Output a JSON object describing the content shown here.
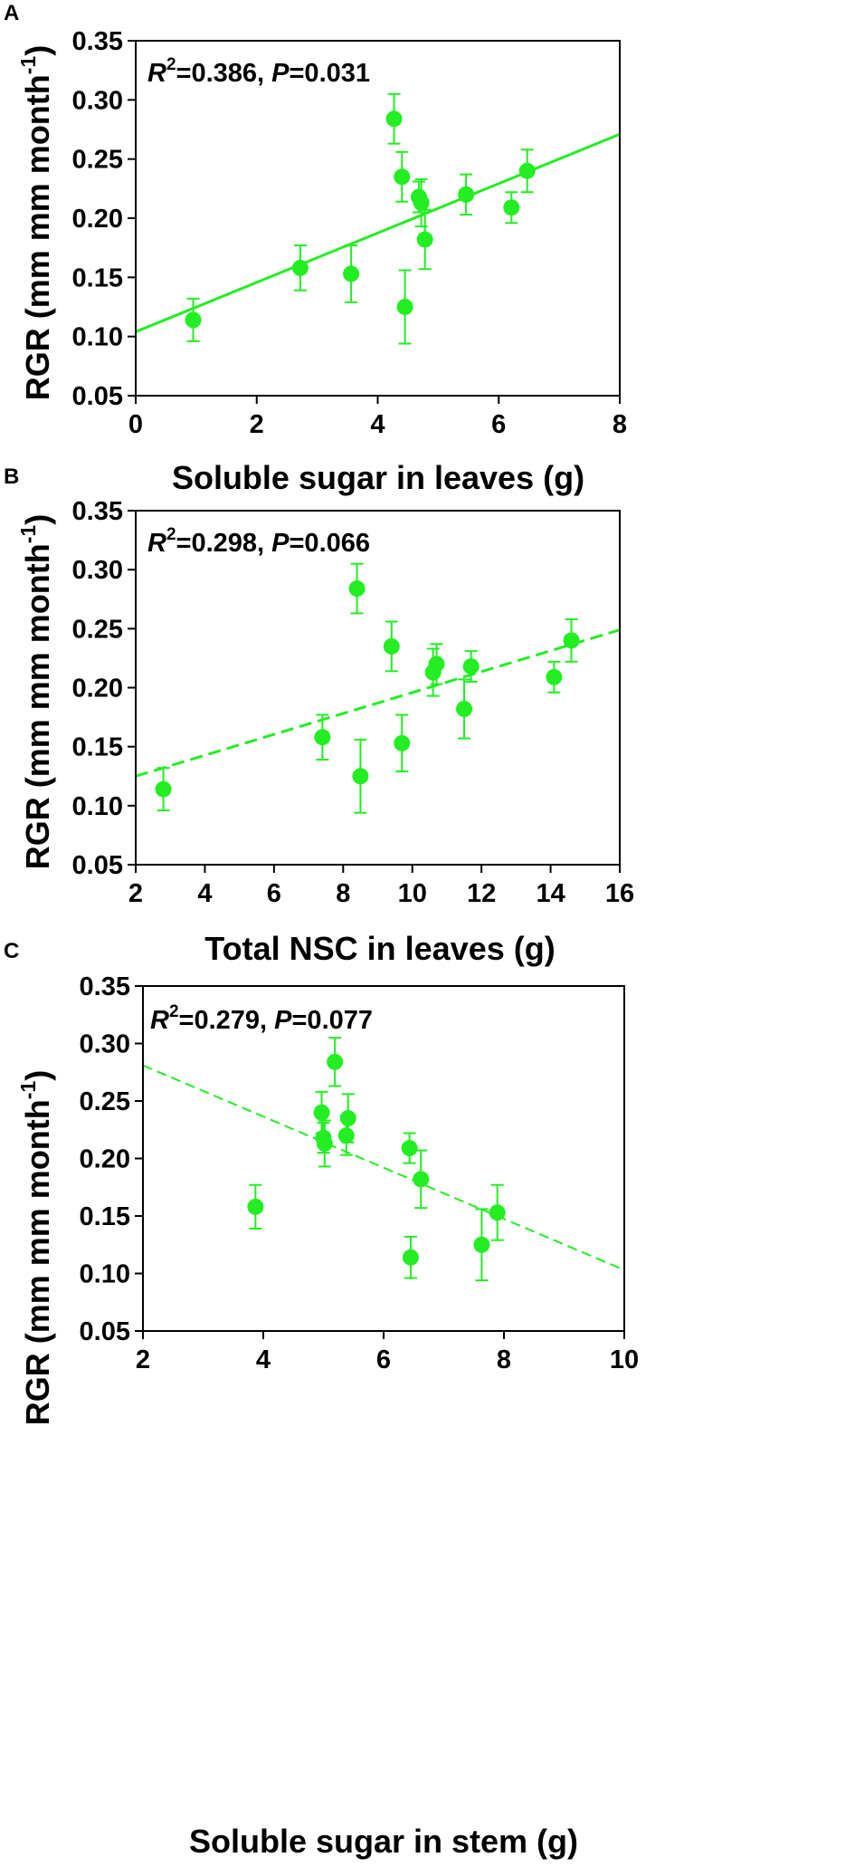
{
  "colors": {
    "series": "#22ee22",
    "axis": "#000000"
  },
  "chart_data": [
    {
      "type": "scatter",
      "panel": "A",
      "xlabel": "Soluble sugar in leaves (g)",
      "ylabel_main": "RGR (mm mm month",
      "ylabel_sup": "-1",
      "ylabel_close": ")",
      "xlim": [
        0,
        8
      ],
      "ylim": [
        0.05,
        0.35
      ],
      "xticks": [
        0,
        2,
        4,
        6,
        8
      ],
      "xtick_labels": [
        "0",
        "2",
        "4",
        "6",
        "8"
      ],
      "yticks": [
        0.05,
        0.1,
        0.15,
        0.2,
        0.25,
        0.3,
        0.35
      ],
      "ytick_labels": [
        "0.05",
        "0.10",
        "0.15",
        "0.20",
        "0.25",
        "0.30",
        "0.35"
      ],
      "stat": {
        "r_label": "R",
        "r_sup": "2",
        "r_value": "=0.386, ",
        "p_label": "P",
        "p_value": "=0.031"
      },
      "fit": {
        "x0": 0,
        "y0": 0.104,
        "x1": 8,
        "y1": 0.271,
        "style": "solid"
      },
      "points": [
        {
          "x": 0.95,
          "y": 0.114,
          "err": 0.018
        },
        {
          "x": 2.72,
          "y": 0.158,
          "err": 0.019
        },
        {
          "x": 3.56,
          "y": 0.153,
          "err": 0.024
        },
        {
          "x": 4.27,
          "y": 0.284,
          "err": 0.021
        },
        {
          "x": 4.4,
          "y": 0.235,
          "err": 0.021
        },
        {
          "x": 4.45,
          "y": 0.125,
          "err": 0.031
        },
        {
          "x": 4.68,
          "y": 0.218,
          "err": 0.013
        },
        {
          "x": 4.72,
          "y": 0.213,
          "err": 0.02
        },
        {
          "x": 4.78,
          "y": 0.182,
          "err": 0.025
        },
        {
          "x": 5.46,
          "y": 0.22,
          "err": 0.017
        },
        {
          "x": 6.21,
          "y": 0.209,
          "err": 0.013
        },
        {
          "x": 6.47,
          "y": 0.24,
          "err": 0.018
        }
      ]
    },
    {
      "type": "scatter",
      "panel": "B",
      "xlabel": "Total NSC in leaves (g)",
      "ylabel_main": "RGR (mm mm month",
      "ylabel_sup": "-1",
      "ylabel_close": ")",
      "xlim": [
        2,
        16
      ],
      "ylim": [
        0.05,
        0.35
      ],
      "xticks": [
        2,
        4,
        6,
        8,
        10,
        12,
        14,
        16
      ],
      "xtick_labels": [
        "2",
        "4",
        "6",
        "8",
        "10",
        "12",
        "14",
        "16"
      ],
      "yticks": [
        0.05,
        0.1,
        0.15,
        0.2,
        0.25,
        0.3,
        0.35
      ],
      "ytick_labels": [
        "0.05",
        "0.10",
        "0.15",
        "0.20",
        "0.25",
        "0.30",
        "0.35"
      ],
      "stat": {
        "r_label": "R",
        "r_sup": "2",
        "r_value": "=0.298, ",
        "p_label": "P",
        "p_value": "=0.066"
      },
      "fit": {
        "x0": 2,
        "y0": 0.125,
        "x1": 16,
        "y1": 0.249,
        "style": "dashed"
      },
      "points": [
        {
          "x": 2.8,
          "y": 0.114,
          "err": 0.018
        },
        {
          "x": 7.4,
          "y": 0.158,
          "err": 0.019
        },
        {
          "x": 8.4,
          "y": 0.284,
          "err": 0.021
        },
        {
          "x": 8.5,
          "y": 0.125,
          "err": 0.031
        },
        {
          "x": 9.4,
          "y": 0.235,
          "err": 0.021
        },
        {
          "x": 9.7,
          "y": 0.153,
          "err": 0.024
        },
        {
          "x": 10.6,
          "y": 0.213,
          "err": 0.02
        },
        {
          "x": 10.7,
          "y": 0.22,
          "err": 0.017
        },
        {
          "x": 11.5,
          "y": 0.182,
          "err": 0.025
        },
        {
          "x": 11.7,
          "y": 0.218,
          "err": 0.013
        },
        {
          "x": 14.1,
          "y": 0.209,
          "err": 0.013
        },
        {
          "x": 14.6,
          "y": 0.24,
          "err": 0.018
        }
      ]
    },
    {
      "type": "scatter",
      "panel": "C",
      "xlabel": "Soluble sugar in stem (g)",
      "ylabel_main": "RGR (mm mm month",
      "ylabel_sup": "-1",
      "ylabel_close": ")",
      "xlim": [
        2,
        10
      ],
      "ylim": [
        0.05,
        0.35
      ],
      "xticks": [
        2,
        4,
        6,
        8,
        10
      ],
      "xtick_labels": [
        "2",
        "4",
        "6",
        "8",
        "10"
      ],
      "yticks": [
        0.05,
        0.1,
        0.15,
        0.2,
        0.25,
        0.3,
        0.35
      ],
      "ytick_labels": [
        "0.05",
        "0.10",
        "0.15",
        "0.20",
        "0.25",
        "0.30",
        "0.35"
      ],
      "stat": {
        "r_label": "R",
        "r_sup": "2",
        "r_value": "=0.279, ",
        "p_label": "P",
        "p_value": "=0.077"
      },
      "fit": {
        "x0": 2,
        "y0": 0.281,
        "x1": 10,
        "y1": 0.103,
        "style": "dashed-thin"
      },
      "points": [
        {
          "x": 3.87,
          "y": 0.158,
          "err": 0.019
        },
        {
          "x": 4.97,
          "y": 0.24,
          "err": 0.018
        },
        {
          "x": 5.0,
          "y": 0.218,
          "err": 0.013
        },
        {
          "x": 5.02,
          "y": 0.213,
          "err": 0.02
        },
        {
          "x": 5.19,
          "y": 0.284,
          "err": 0.021
        },
        {
          "x": 5.38,
          "y": 0.22,
          "err": 0.017
        },
        {
          "x": 5.41,
          "y": 0.235,
          "err": 0.021
        },
        {
          "x": 6.43,
          "y": 0.209,
          "err": 0.013
        },
        {
          "x": 6.45,
          "y": 0.114,
          "err": 0.018
        },
        {
          "x": 6.62,
          "y": 0.182,
          "err": 0.025
        },
        {
          "x": 7.63,
          "y": 0.125,
          "err": 0.031
        },
        {
          "x": 7.89,
          "y": 0.153,
          "err": 0.024
        }
      ]
    }
  ]
}
